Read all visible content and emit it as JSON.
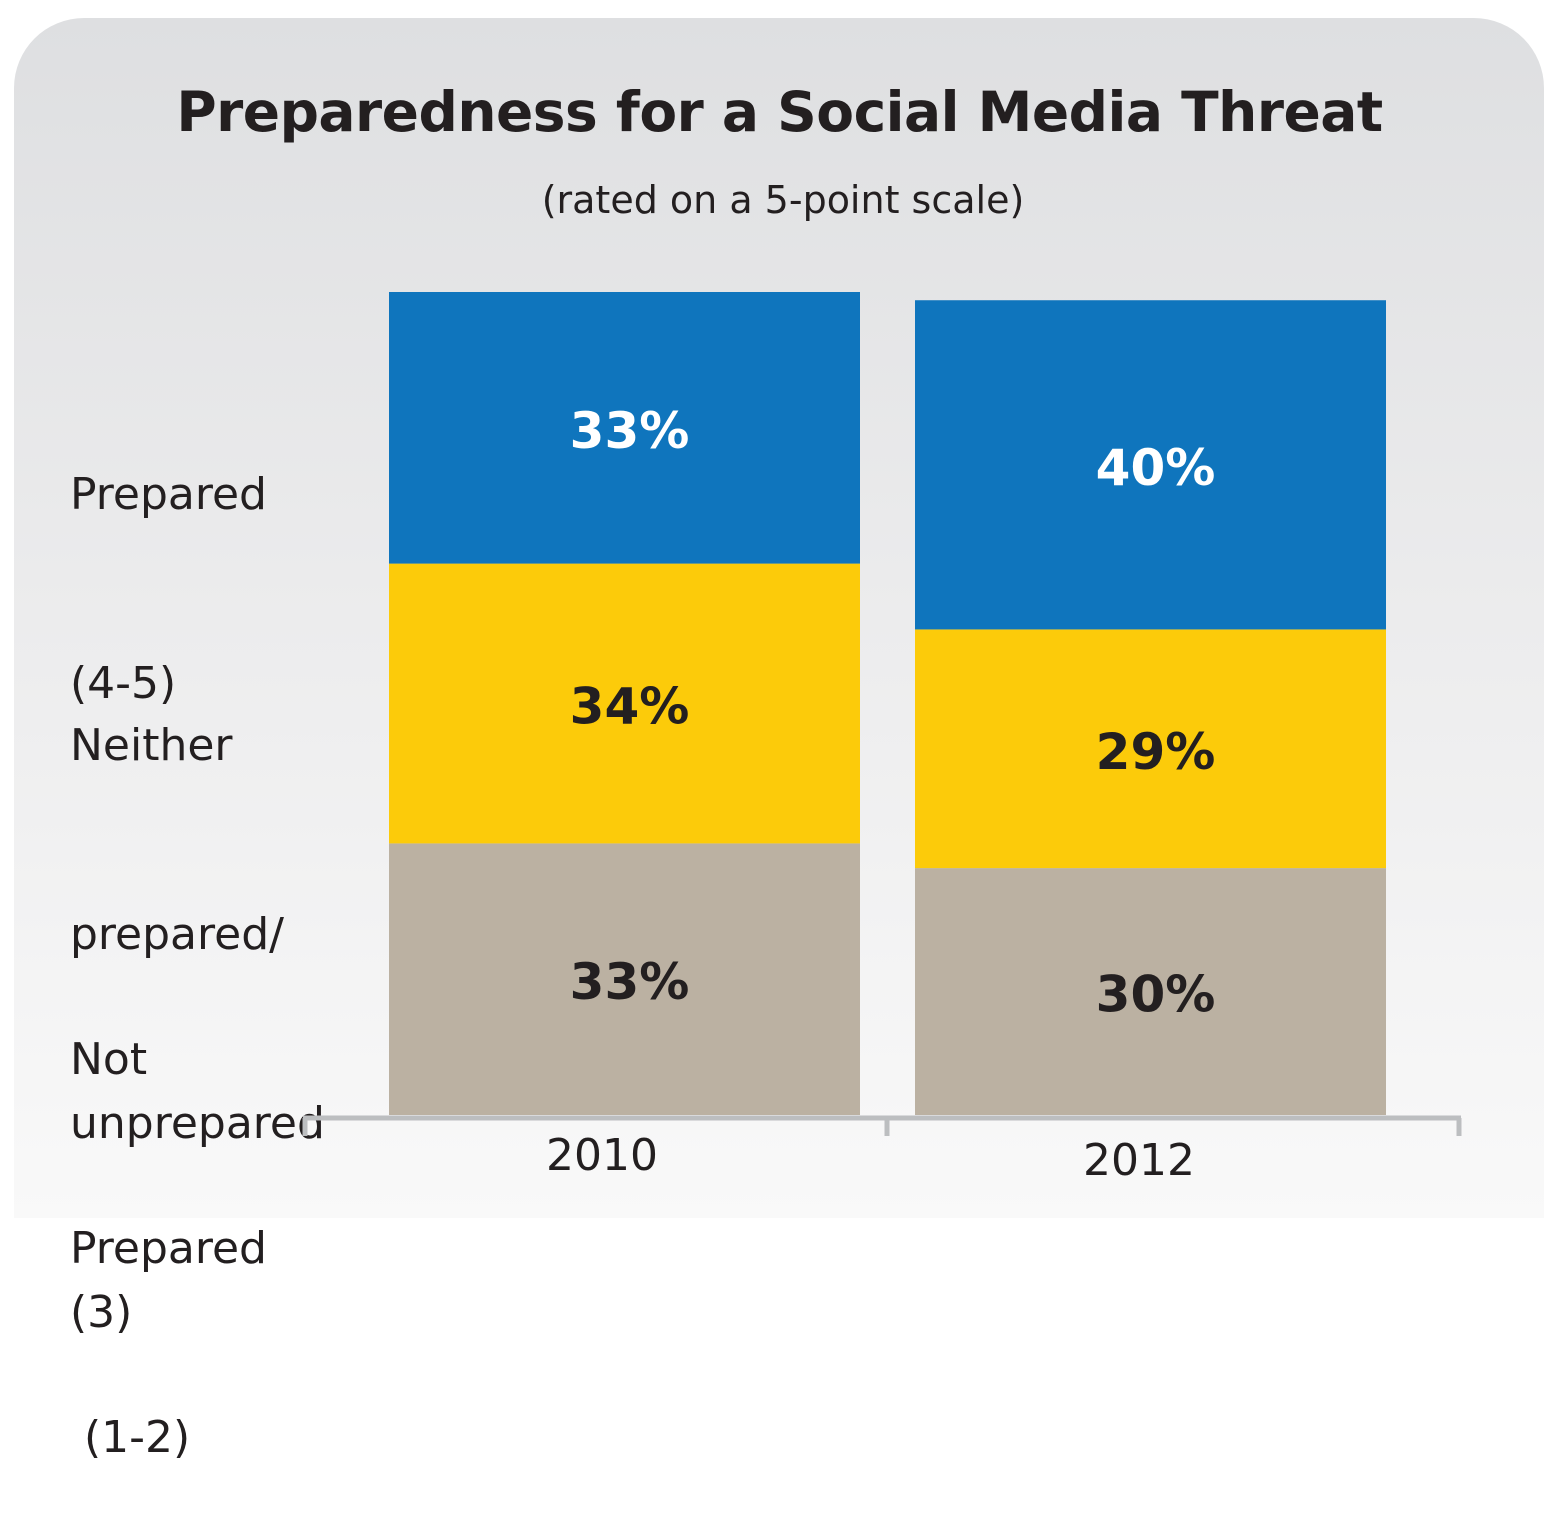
{
  "chart_data": {
    "type": "bar",
    "stacked": true,
    "title": "Preparedness for a Social Media Threat",
    "subtitle": "(rated on a 5-point scale)",
    "categories": [
      "2010",
      "2012"
    ],
    "series": [
      {
        "name": "Not Prepared (1-2)",
        "label_lines": [
          "Not",
          "Prepared",
          " (1-2)"
        ],
        "values": [
          33,
          30
        ],
        "color": "#bbb1a2",
        "text_color": "#231f20"
      },
      {
        "name": "Neither prepared/ unprepared (3)",
        "label_lines": [
          "Neither",
          "prepared/",
          "unprepared",
          "(3)"
        ],
        "values": [
          34,
          29
        ],
        "color": "#fccb0a",
        "text_color": "#231f20"
      },
      {
        "name": "Prepared (4-5)",
        "label_lines": [
          "Prepared",
          "(4-5)"
        ],
        "values": [
          33,
          40
        ],
        "color": "#0f75bd",
        "text_color": "#ffffff"
      }
    ],
    "data_labels": [
      [
        "33%",
        "30%"
      ],
      [
        "34%",
        "29%"
      ],
      [
        "33%",
        "40%"
      ]
    ],
    "ylim": [
      0,
      100
    ],
    "grid": false,
    "legend": "left"
  }
}
